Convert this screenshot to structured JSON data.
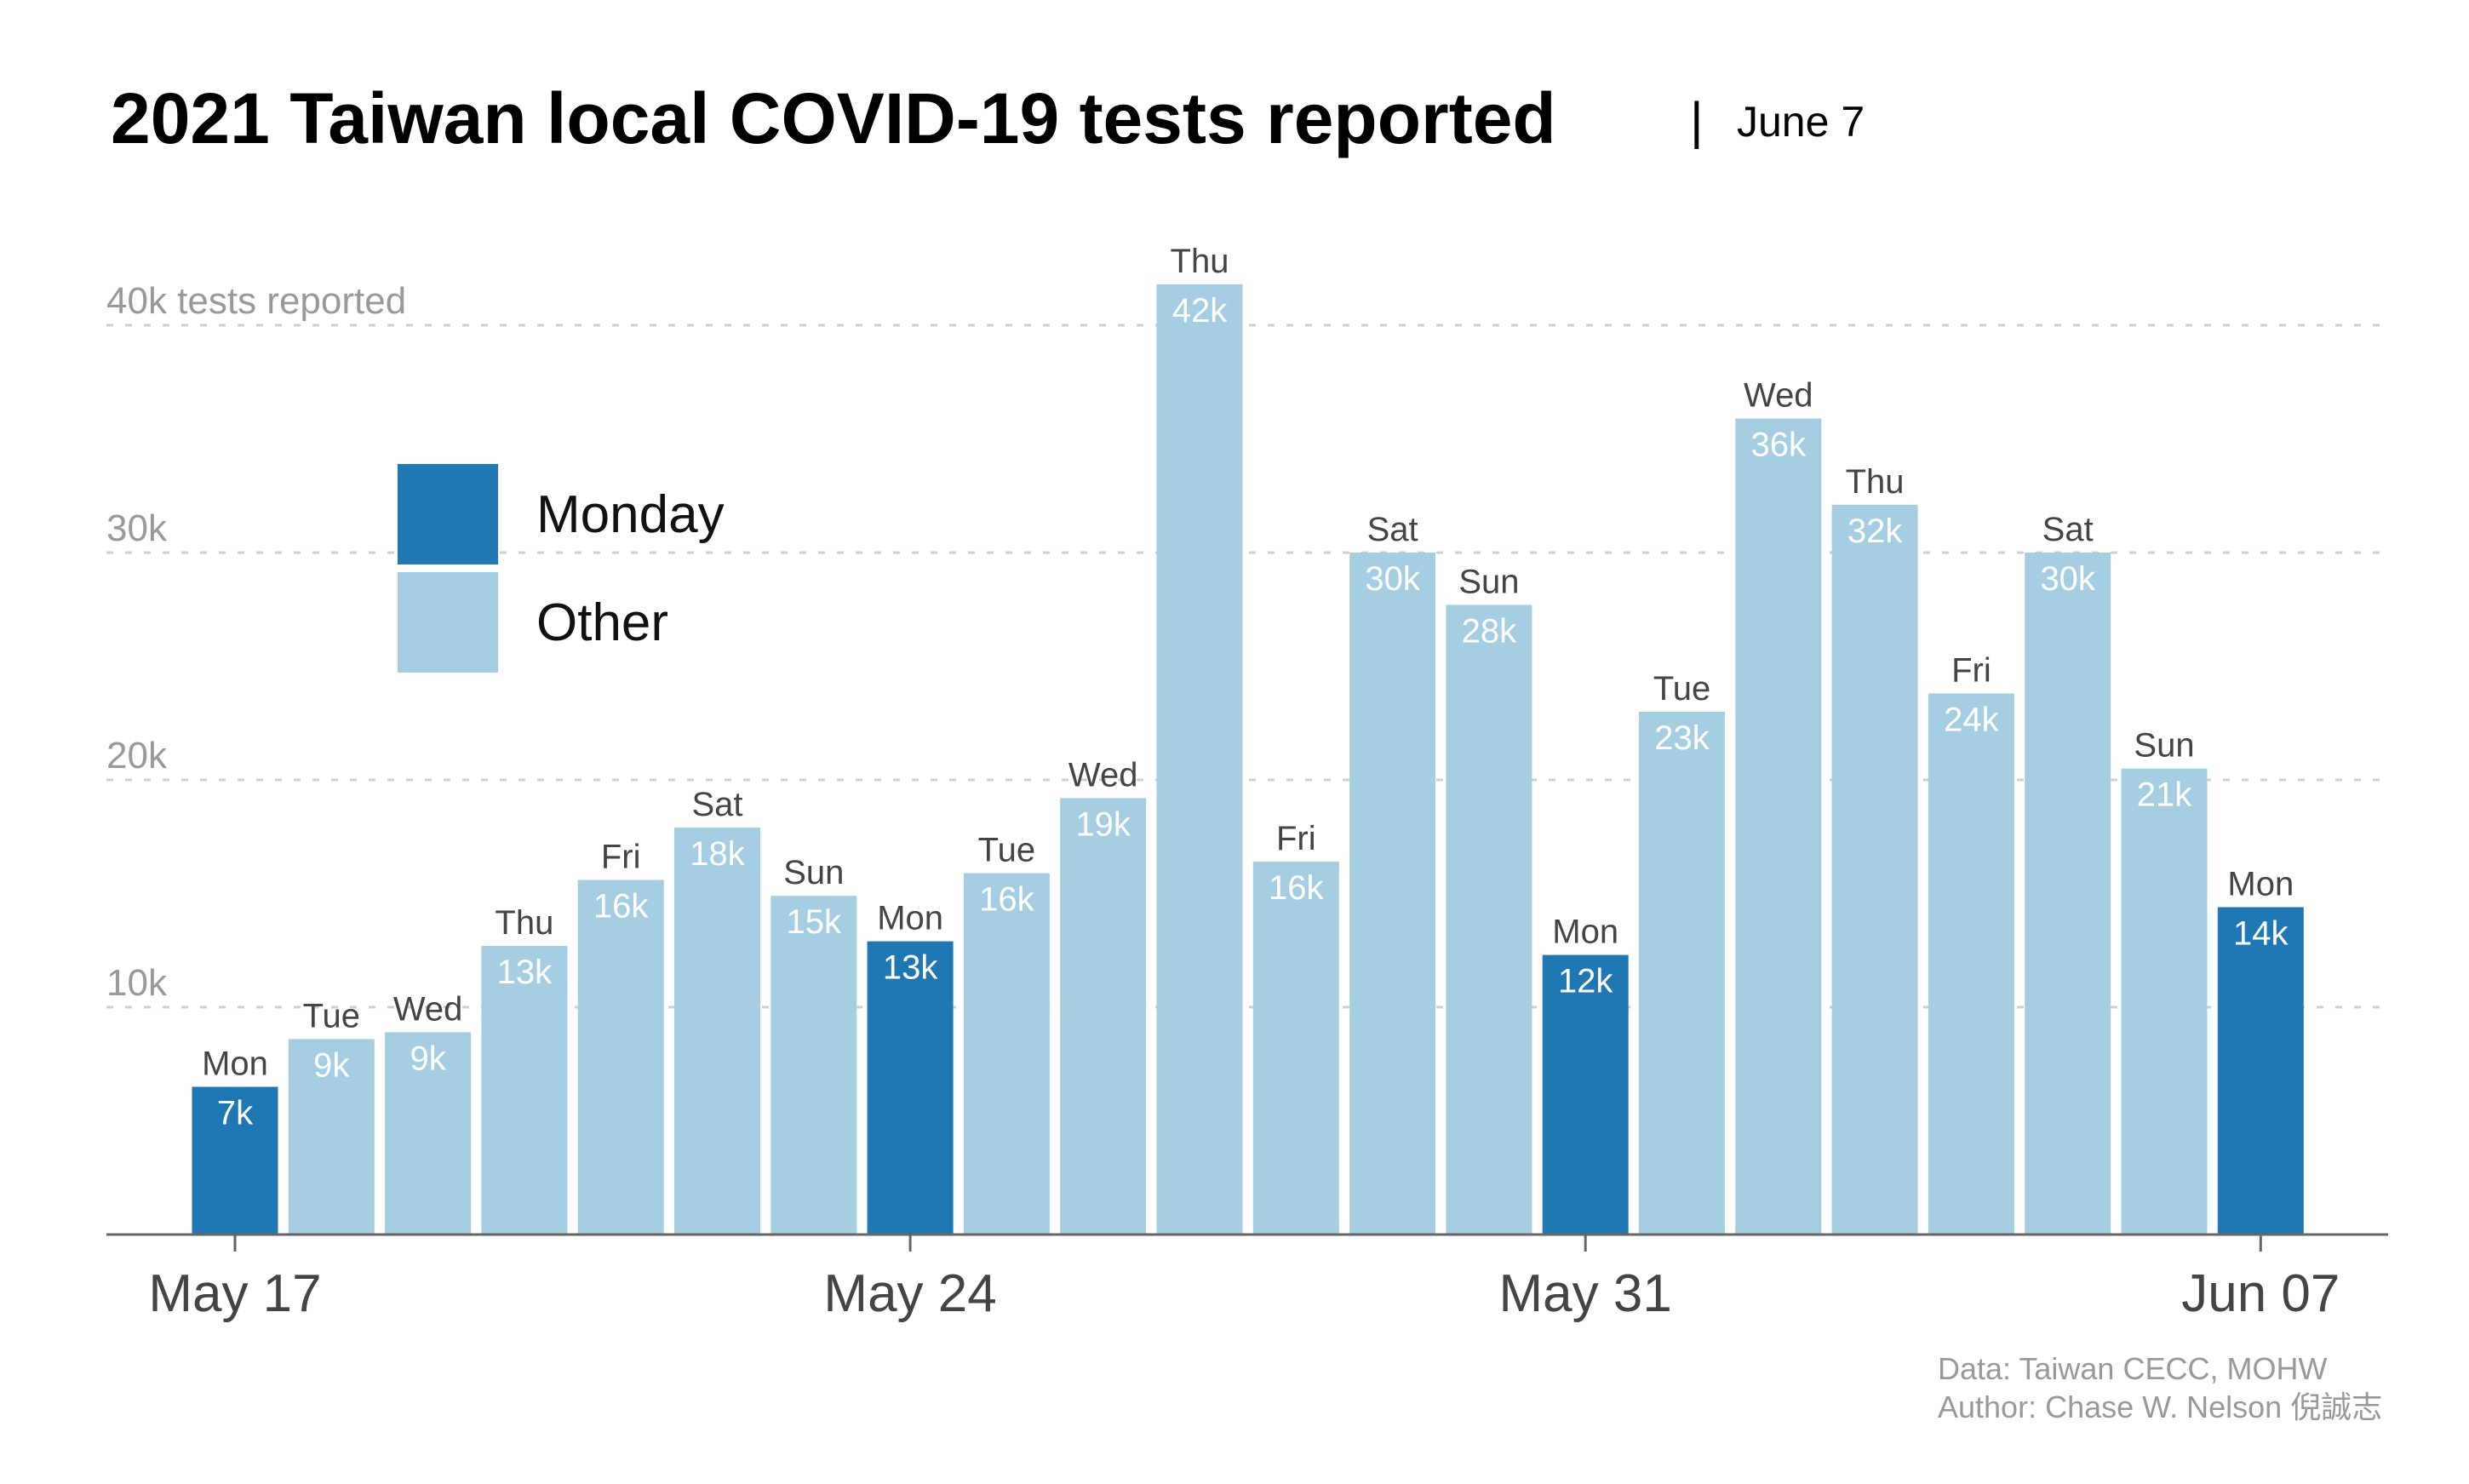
{
  "title": "2021 Taiwan local COVID-19 tests reported",
  "subtitle_separator": "|",
  "subtitle": "June 7",
  "source_line1": "Data: Taiwan CECC, MOHW",
  "source_line2": "Author: Chase W. Nelson 倪誠志",
  "legend": [
    {
      "label": "Monday",
      "color": "#1f78b4"
    },
    {
      "label": "Other",
      "color": "#a6cee3"
    }
  ],
  "chart_data": {
    "type": "bar",
    "ylim": [
      0,
      42000
    ],
    "yticks": [
      {
        "value": 10000,
        "label": "10k"
      },
      {
        "value": 20000,
        "label": "20k"
      },
      {
        "value": 30000,
        "label": "30k"
      },
      {
        "value": 40000,
        "label": "40k tests reported"
      }
    ],
    "xticks": [
      {
        "date": "2021-05-17",
        "label": "May 17"
      },
      {
        "date": "2021-05-24",
        "label": "May 24"
      },
      {
        "date": "2021-05-31",
        "label": "May 31"
      },
      {
        "date": "2021-06-07",
        "label": "Jun 07"
      }
    ],
    "grid": true,
    "series": [
      {
        "name": "Monday",
        "color": "#1f78b4",
        "points": [
          {
            "date": "2021-05-17",
            "day": "Mon",
            "value": 6500,
            "label": "7k"
          },
          {
            "date": "2021-05-24",
            "day": "Mon",
            "value": 12900,
            "label": "13k"
          },
          {
            "date": "2021-05-31",
            "day": "Mon",
            "value": 12300,
            "label": "12k"
          },
          {
            "date": "2021-06-07",
            "day": "Mon",
            "value": 14400,
            "label": "14k"
          }
        ]
      },
      {
        "name": "Other",
        "color": "#a6cee3",
        "points": [
          {
            "date": "2021-05-18",
            "day": "Tue",
            "value": 8600,
            "label": "9k"
          },
          {
            "date": "2021-05-19",
            "day": "Wed",
            "value": 8900,
            "label": "9k"
          },
          {
            "date": "2021-05-20",
            "day": "Thu",
            "value": 12700,
            "label": "13k"
          },
          {
            "date": "2021-05-21",
            "day": "Fri",
            "value": 15600,
            "label": "16k"
          },
          {
            "date": "2021-05-22",
            "day": "Sat",
            "value": 17900,
            "label": "18k"
          },
          {
            "date": "2021-05-23",
            "day": "Sun",
            "value": 14900,
            "label": "15k"
          },
          {
            "date": "2021-05-25",
            "day": "Tue",
            "value": 15900,
            "label": "16k"
          },
          {
            "date": "2021-05-26",
            "day": "Wed",
            "value": 19200,
            "label": "19k"
          },
          {
            "date": "2021-05-27",
            "day": "Thu",
            "value": 41800,
            "label": "42k"
          },
          {
            "date": "2021-05-28",
            "day": "Fri",
            "value": 16400,
            "label": "16k"
          },
          {
            "date": "2021-05-29",
            "day": "Sat",
            "value": 30000,
            "label": "30k"
          },
          {
            "date": "2021-05-30",
            "day": "Sun",
            "value": 27700,
            "label": "28k"
          },
          {
            "date": "2021-06-01",
            "day": "Tue",
            "value": 23000,
            "label": "23k"
          },
          {
            "date": "2021-06-02",
            "day": "Wed",
            "value": 35900,
            "label": "36k"
          },
          {
            "date": "2021-06-03",
            "day": "Thu",
            "value": 32100,
            "label": "32k"
          },
          {
            "date": "2021-06-04",
            "day": "Fri",
            "value": 23800,
            "label": "24k"
          },
          {
            "date": "2021-06-05",
            "day": "Sat",
            "value": 30000,
            "label": "30k"
          },
          {
            "date": "2021-06-06",
            "day": "Sun",
            "value": 20500,
            "label": "21k"
          }
        ]
      }
    ]
  }
}
